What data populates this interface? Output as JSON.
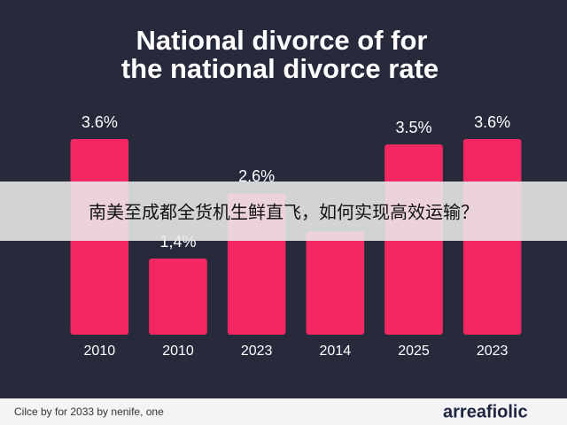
{
  "chart_data": {
    "type": "bar",
    "title": [
      "National divorce of for",
      "the national divorce rate"
    ],
    "categories": [
      "2010",
      "2010",
      "2023",
      "2014",
      "2025",
      "2023"
    ],
    "values": [
      3.6,
      1.4,
      2.6,
      1.9,
      3.5,
      3.6
    ],
    "value_labels": [
      "3.6%",
      "1,4%",
      "2.6%",
      null,
      "3.5%",
      "3.6%"
    ],
    "color": "#f32862"
  },
  "footer": {
    "note": "Cilce by for 2033 by nenife, one",
    "logo": "arreafiolic"
  },
  "banner": "南美至成都全货机生鲜直飞，如何实现高效运输？"
}
